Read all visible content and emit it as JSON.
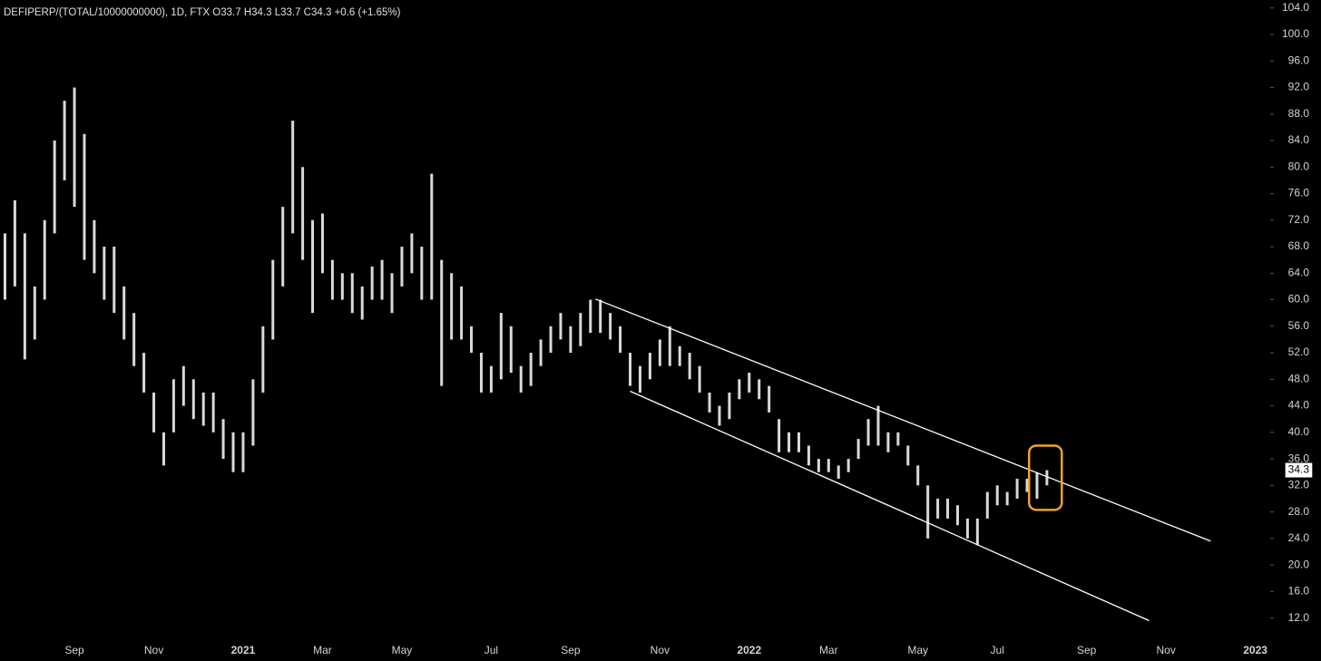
{
  "chart_data": {
    "type": "range-bar",
    "title": "DEFIPERP/(TOTAL/10000000000), 1D, FTX  O33.7  H34.3  L33.7  C34.3  +0.6 (+1.65%)",
    "color": "#d9d9d9",
    "categories": [
      null,
      null,
      null,
      null,
      null,
      null,
      null,
      "Sep",
      null,
      null,
      null,
      null,
      null,
      null,
      null,
      "Nov",
      null,
      null,
      null,
      null,
      null,
      null,
      null,
      null,
      "2021",
      null,
      null,
      null,
      null,
      null,
      null,
      null,
      "Mar",
      null,
      null,
      null,
      null,
      null,
      null,
      null,
      "May",
      null,
      null,
      null,
      null,
      null,
      null,
      null,
      null,
      "Jul",
      null,
      null,
      null,
      null,
      null,
      null,
      null,
      "Sep",
      null,
      null,
      null,
      null,
      null,
      null,
      null,
      null,
      "Nov",
      null,
      null,
      null,
      null,
      null,
      null,
      null,
      null,
      "2022",
      null,
      null,
      null,
      null,
      null,
      null,
      null,
      "Mar",
      null,
      null,
      null,
      null,
      null,
      null,
      null,
      null,
      "May",
      null,
      null,
      null,
      null,
      null,
      null,
      null,
      "Jul",
      null,
      null,
      null,
      null,
      null,
      null,
      null,
      null,
      "Sep",
      null,
      null,
      null,
      null,
      null,
      null,
      null,
      "Nov",
      null,
      null,
      null,
      null,
      null,
      null,
      null,
      null,
      "2023",
      null
    ],
    "series": [
      {
        "name": "high",
        "values": [
          70,
          75,
          70,
          62,
          72,
          84,
          90,
          92,
          85,
          72,
          68,
          68,
          62,
          58,
          52,
          46,
          40,
          48,
          50,
          48,
          46,
          46,
          42,
          40,
          40,
          48,
          56,
          66,
          74,
          87,
          80,
          72,
          73,
          66,
          64,
          64,
          62,
          65,
          66,
          64,
          68,
          70,
          68,
          79,
          66,
          64,
          62,
          56,
          52,
          50,
          58,
          56,
          50,
          52,
          54,
          56,
          58,
          56,
          58,
          60,
          60,
          58,
          56,
          52,
          50,
          52,
          54,
          56,
          53,
          52,
          50,
          46,
          44,
          46,
          48,
          49,
          48,
          47,
          42,
          40,
          40,
          38,
          36,
          36,
          35,
          36,
          39,
          42,
          44,
          40,
          40,
          38,
          35,
          32,
          30,
          30,
          29,
          27,
          27,
          31,
          32,
          31,
          33,
          33,
          34,
          34.3,
          null,
          null,
          null,
          null,
          null,
          null,
          null,
          null,
          null,
          null,
          null,
          null,
          null,
          null,
          null,
          null,
          null,
          null,
          null,
          null,
          null,
          null
        ]
      },
      {
        "name": "low",
        "values": [
          60,
          62,
          51,
          54,
          60,
          70,
          78,
          74,
          66,
          64,
          60,
          58,
          54,
          50,
          46,
          40,
          35,
          40,
          44,
          42,
          41,
          40,
          36,
          34,
          34,
          38,
          46,
          54,
          62,
          70,
          66,
          58,
          64,
          60,
          60,
          58,
          57,
          60,
          60,
          58,
          62,
          64,
          60,
          60,
          47,
          54,
          54,
          52,
          46,
          46,
          48,
          49,
          46,
          47,
          50,
          52,
          54,
          52,
          53,
          55,
          55,
          54,
          52,
          47,
          46,
          48,
          50,
          50,
          50,
          48,
          46,
          43,
          41,
          42,
          45,
          46,
          45,
          43,
          37,
          37,
          37,
          35,
          34,
          34,
          33,
          34,
          36,
          38,
          38,
          37,
          38,
          35,
          32,
          24,
          27,
          27,
          26,
          24,
          23,
          27,
          29,
          29,
          30,
          31,
          30,
          32,
          null,
          null,
          null,
          null,
          null,
          null,
          null,
          null,
          null,
          null,
          null,
          null,
          null,
          null,
          null,
          null,
          null,
          null,
          null,
          null,
          null,
          null
        ]
      }
    ],
    "last_close": 34.3,
    "ylim": [
      8.8,
      105.2
    ],
    "yticks": [
      {
        "value": 12,
        "label": "12.0"
      },
      {
        "value": 16,
        "label": "16.0"
      },
      {
        "value": 20,
        "label": "20.0"
      },
      {
        "value": 24,
        "label": "24.0"
      },
      {
        "value": 28,
        "label": "28.0"
      },
      {
        "value": 32,
        "label": "32.0"
      },
      {
        "value": 36,
        "label": "36.0"
      },
      {
        "value": 40,
        "label": "40.0"
      },
      {
        "value": 44,
        "label": "44.0"
      },
      {
        "value": 48,
        "label": "48.0"
      },
      {
        "value": 52,
        "label": "52.0"
      },
      {
        "value": 56,
        "label": "56.0"
      },
      {
        "value": 60,
        "label": "60.0"
      },
      {
        "value": 64,
        "label": "64.0"
      },
      {
        "value": 68,
        "label": "68.0"
      },
      {
        "value": 72,
        "label": "72.0"
      },
      {
        "value": 76,
        "label": "76.0"
      },
      {
        "value": 80,
        "label": "80.0"
      },
      {
        "value": 84,
        "label": "84.0"
      },
      {
        "value": 88,
        "label": "88.0"
      },
      {
        "value": 92,
        "label": "92.0"
      },
      {
        "value": 96,
        "label": "96.0"
      },
      {
        "value": 100,
        "label": "100.0"
      },
      {
        "value": 104,
        "label": "104.0"
      }
    ],
    "trend_lines": [
      {
        "start": [
          59.5,
          60.1
        ],
        "end": [
          121.5,
          23.6
        ]
      },
      {
        "start": [
          63.0,
          46.2
        ],
        "end": [
          115.3,
          11.6
        ]
      }
    ],
    "highlight": {
      "x": [
        103.2,
        106.5
      ],
      "y": [
        28.3,
        38
      ],
      "color": "#f0a030"
    }
  }
}
